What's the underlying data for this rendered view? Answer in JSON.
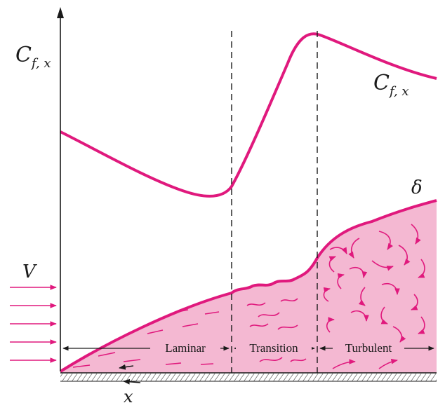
{
  "labels": {
    "cf_axis_main": "C",
    "cf_axis_sub": "f, x",
    "cf_curve_main": "C",
    "cf_curve_sub": "f, x",
    "delta": "δ",
    "velocity": "V",
    "x_axis": "x"
  },
  "regions": [
    "Laminar",
    "Transition",
    "Turbulent"
  ],
  "colors": {
    "curve": "#e0197d",
    "fill": "#f4b8d2",
    "ink": "#1a1a1a"
  }
}
